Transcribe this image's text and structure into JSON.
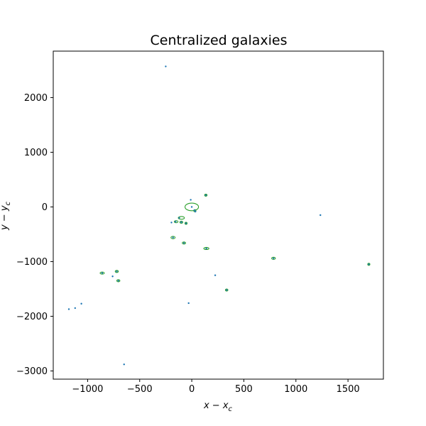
{
  "chart_data": {
    "type": "scatter",
    "title": "Centralized galaxies",
    "xlabel": "x − x",
    "xlabel_sub": "c",
    "ylabel": "y − y",
    "ylabel_sub": "c",
    "xlim": [
      -1330,
      1840
    ],
    "ylim": [
      -3150,
      2850
    ],
    "xticks": [
      -1000,
      -500,
      0,
      500,
      1000,
      1500
    ],
    "xtick_labels": [
      "−1000",
      "−500",
      "0",
      "500",
      "1000",
      "1500"
    ],
    "yticks": [
      -3000,
      -2000,
      -1000,
      0,
      1000,
      2000
    ],
    "ytick_labels": [
      "−3000",
      "−2000",
      "−1000",
      "0",
      "1000",
      "2000"
    ],
    "grid": false,
    "colors": {
      "points": "#1f77b4",
      "ellipses": "#2ca02c"
    },
    "points": [
      {
        "x": -250,
        "y": 2570
      },
      {
        "x": -650,
        "y": -2880
      },
      {
        "x": -1180,
        "y": -1870
      },
      {
        "x": -1120,
        "y": -1850
      },
      {
        "x": -1060,
        "y": -1770
      },
      {
        "x": -860,
        "y": -1210
      },
      {
        "x": -760,
        "y": -1270
      },
      {
        "x": -720,
        "y": -1180
      },
      {
        "x": -705,
        "y": -1350
      },
      {
        "x": -195,
        "y": -285
      },
      {
        "x": -155,
        "y": -270
      },
      {
        "x": -120,
        "y": -200
      },
      {
        "x": -100,
        "y": -280
      },
      {
        "x": -55,
        "y": -300
      },
      {
        "x": -180,
        "y": -560
      },
      {
        "x": -75,
        "y": -660
      },
      {
        "x": -30,
        "y": -1760
      },
      {
        "x": -10,
        "y": 130
      },
      {
        "x": 0,
        "y": 0
      },
      {
        "x": 25,
        "y": -60
      },
      {
        "x": 35,
        "y": -85
      },
      {
        "x": 135,
        "y": 215
      },
      {
        "x": 140,
        "y": -760
      },
      {
        "x": 225,
        "y": -1250
      },
      {
        "x": 335,
        "y": -1520
      },
      {
        "x": 785,
        "y": -940
      },
      {
        "x": 1235,
        "y": -150
      },
      {
        "x": 1700,
        "y": -1050
      }
    ],
    "ellipses": [
      {
        "x": 0,
        "y": 0,
        "rx": 65,
        "ry": 70
      },
      {
        "x": -100,
        "y": -200,
        "rx": 30,
        "ry": 25
      },
      {
        "x": -150,
        "y": -270,
        "rx": 18,
        "ry": 14
      },
      {
        "x": -100,
        "y": -280,
        "rx": 14,
        "ry": 12
      },
      {
        "x": -55,
        "y": -300,
        "rx": 8,
        "ry": 14
      },
      {
        "x": -180,
        "y": -560,
        "rx": 20,
        "ry": 22
      },
      {
        "x": -75,
        "y": -660,
        "rx": 16,
        "ry": 12
      },
      {
        "x": 140,
        "y": -760,
        "rx": 25,
        "ry": 20
      },
      {
        "x": 30,
        "y": -70,
        "rx": 8,
        "ry": 14
      },
      {
        "x": 135,
        "y": 215,
        "rx": 12,
        "ry": 10
      },
      {
        "x": -860,
        "y": -1210,
        "rx": 20,
        "ry": 16
      },
      {
        "x": -720,
        "y": -1180,
        "rx": 15,
        "ry": 16
      },
      {
        "x": -705,
        "y": -1350,
        "rx": 15,
        "ry": 14
      },
      {
        "x": 335,
        "y": -1520,
        "rx": 12,
        "ry": 12
      },
      {
        "x": 785,
        "y": -940,
        "rx": 18,
        "ry": 14
      },
      {
        "x": 1700,
        "y": -1050,
        "rx": 10,
        "ry": 8
      }
    ]
  }
}
